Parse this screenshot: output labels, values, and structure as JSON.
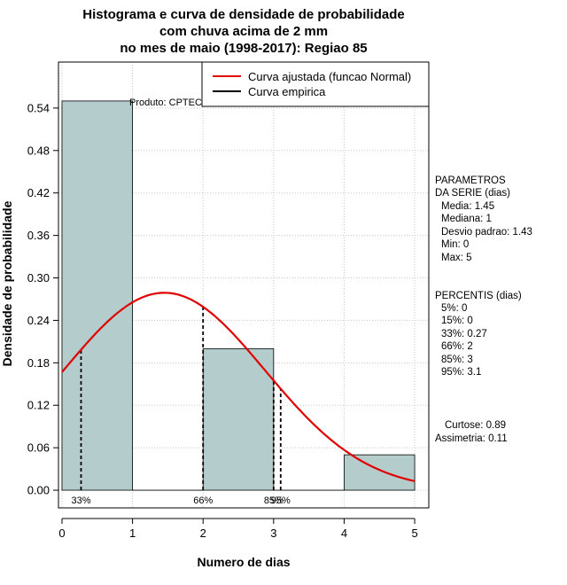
{
  "chart_data": {
    "type": "histogram",
    "title_lines": [
      "Histograma e curva de densidade de probabilidade",
      "com chuva acima de 2 mm",
      "no mes de maio (1998-2017): Regiao 85"
    ],
    "xlabel": "Numero de dias",
    "ylabel": "Densidade de probabilidade",
    "xlim": [
      -0.05,
      5.2
    ],
    "ylim": [
      -0.025,
      0.605
    ],
    "x_ticks": [
      0,
      1,
      2,
      3,
      4,
      5
    ],
    "y_ticks": [
      0.0,
      0.06,
      0.12,
      0.18,
      0.24,
      0.3,
      0.36,
      0.42,
      0.48,
      0.54
    ],
    "y_tick_labels": [
      "0.00",
      "0.06",
      "0.12",
      "0.18",
      "0.24",
      "0.30",
      "0.36",
      "0.42",
      "0.48",
      "0.54"
    ],
    "grid": true,
    "bins": [
      {
        "start": 0,
        "end": 1,
        "density": 0.55
      },
      {
        "start": 1,
        "end": 2,
        "density": 0.0
      },
      {
        "start": 2,
        "end": 3,
        "density": 0.2
      },
      {
        "start": 3,
        "end": 4,
        "density": 0.0
      },
      {
        "start": 4,
        "end": 5,
        "density": 0.05
      }
    ],
    "bar_color": "#b4cccc",
    "fitted_curve": {
      "label": "Curva ajustada (funcao Normal)",
      "distribution": "normal",
      "mean": 1.45,
      "sd": 1.43,
      "x_range": [
        0,
        5
      ],
      "color": "#e00000"
    },
    "empirical_curve": {
      "label": "Curva empirica",
      "color": "#000000"
    },
    "percentile_markers": [
      {
        "label": "33%",
        "x": 0.27
      },
      {
        "label": "66%",
        "x": 2.0
      },
      {
        "label": "85%",
        "x": 3.0
      },
      {
        "label": "95%",
        "x": 3.1
      }
    ],
    "product_label": "Produto: CPTEC/INPE",
    "legend_position": "top-right"
  },
  "side_panel": {
    "parametros_title": [
      "PARAMETROS",
      "DA SERIE (dias)"
    ],
    "parametros": [
      "Media: 1.45",
      "Mediana: 1",
      "Desvio padrao: 1.43",
      "Min: 0",
      "Max: 5"
    ],
    "percentis_title": "PERCENTIS (dias)",
    "percentis": [
      "5%: 0",
      "15%: 0",
      "33%: 0.27",
      "66%: 2",
      "85%: 3",
      "95%: 3.1"
    ],
    "curtose": "Curtose: 0.89",
    "assimetria": "Assimetria: 0.11"
  }
}
